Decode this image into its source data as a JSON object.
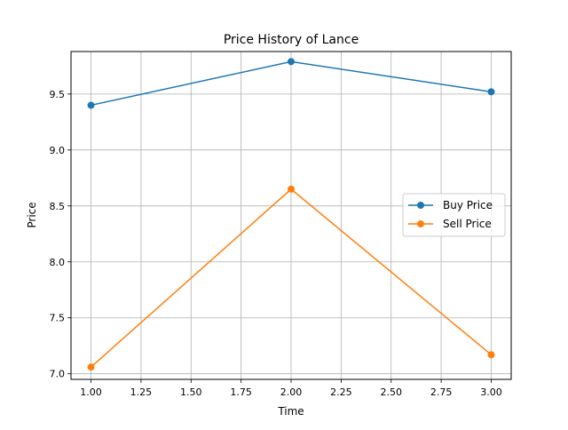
{
  "chart_data": {
    "type": "line",
    "title": "Price History of Lance",
    "xlabel": "Time",
    "ylabel": "Price",
    "xlim": [
      0.9,
      3.1
    ],
    "ylim": [
      6.95,
      9.88
    ],
    "xticks": [
      1.0,
      1.25,
      1.5,
      1.75,
      2.0,
      2.25,
      2.5,
      2.75,
      3.0
    ],
    "xtick_labels": [
      "1.00",
      "1.25",
      "1.50",
      "1.75",
      "2.00",
      "2.25",
      "2.50",
      "2.75",
      "3.00"
    ],
    "yticks": [
      7.0,
      7.5,
      8.0,
      8.5,
      9.0,
      9.5
    ],
    "ytick_labels": [
      "7.0",
      "7.5",
      "8.0",
      "8.5",
      "9.0",
      "9.5"
    ],
    "grid": true,
    "legend_position": "center-right",
    "x": [
      1,
      2,
      3
    ],
    "series": [
      {
        "name": "Buy Price",
        "color": "#1f77b4",
        "marker": "circle",
        "values": [
          9.4,
          9.79,
          9.52
        ]
      },
      {
        "name": "Sell Price",
        "color": "#ff7f0e",
        "marker": "circle",
        "values": [
          7.06,
          8.65,
          7.17
        ]
      }
    ]
  }
}
